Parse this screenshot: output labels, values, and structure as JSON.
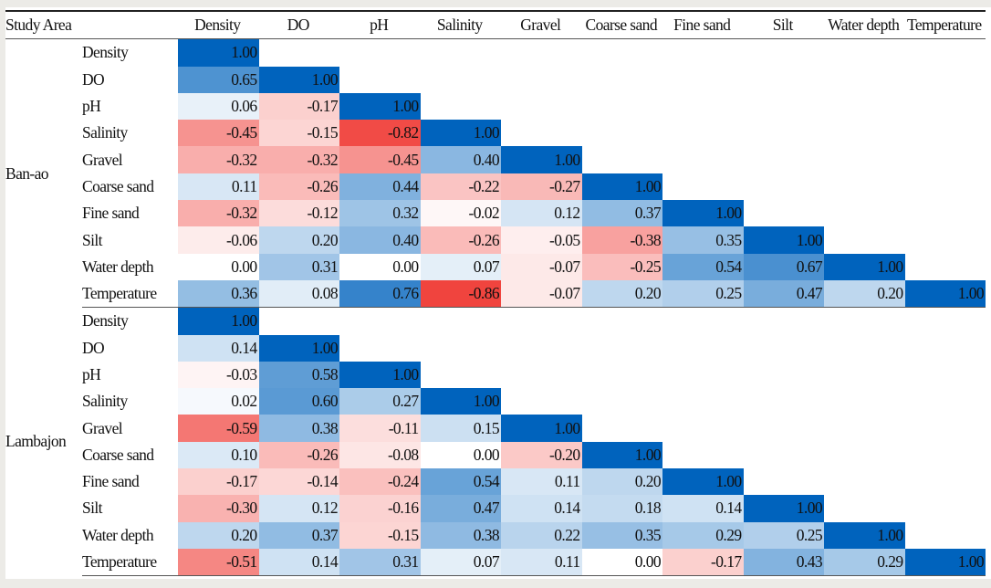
{
  "chart_data": {
    "type": "heatmap",
    "title": "",
    "header": {
      "study_area_label": "Study Area",
      "columns": [
        "Density",
        "DO",
        "pH",
        "Salinity",
        "Gravel",
        "Coarse sand",
        "Fine sand",
        "Silt",
        "Water depth",
        "Temperature"
      ]
    },
    "color_scale": {
      "negative": "#ee2a24",
      "zero": "#ffffff",
      "positive": "#0063bd",
      "range": [
        -1,
        1
      ]
    },
    "groups": [
      {
        "area": "Ban-ao",
        "rows": [
          {
            "label": "Density",
            "values": [
              "1.00"
            ]
          },
          {
            "label": "DO",
            "values": [
              "0.65",
              "1.00"
            ]
          },
          {
            "label": "pH",
            "values": [
              "0.06",
              "-0.17",
              "1.00"
            ]
          },
          {
            "label": "Salinity",
            "values": [
              "-0.45",
              "-0.15",
              "-0.82",
              "1.00"
            ]
          },
          {
            "label": "Gravel",
            "values": [
              "-0.32",
              "-0.32",
              "-0.45",
              "0.40",
              "1.00"
            ]
          },
          {
            "label": "Coarse sand",
            "values": [
              "0.11",
              "-0.26",
              "0.44",
              "-0.22",
              "-0.27",
              "1.00"
            ]
          },
          {
            "label": "Fine sand",
            "values": [
              "-0.32",
              "-0.12",
              "0.32",
              "-0.02",
              "0.12",
              "0.37",
              "1.00"
            ]
          },
          {
            "label": "Silt",
            "values": [
              "-0.06",
              "0.20",
              "0.40",
              "-0.26",
              "-0.05",
              "-0.38",
              "0.35",
              "1.00"
            ]
          },
          {
            "label": "Water depth",
            "values": [
              "0.00",
              "0.31",
              "0.00",
              "0.07",
              "-0.07",
              "-0.25",
              "0.54",
              "0.67",
              "1.00"
            ]
          },
          {
            "label": "Temperature",
            "values": [
              "0.36",
              "0.08",
              "0.76",
              "-0.86",
              "-0.07",
              "0.20",
              "0.25",
              "0.47",
              "0.20",
              "1.00"
            ]
          }
        ]
      },
      {
        "area": "Lambajon",
        "rows": [
          {
            "label": "Density",
            "values": [
              "1.00"
            ]
          },
          {
            "label": "DO",
            "values": [
              "0.14",
              "1.00"
            ]
          },
          {
            "label": "pH",
            "values": [
              "-0.03",
              "0.58",
              "1.00"
            ]
          },
          {
            "label": "Salinity",
            "values": [
              "0.02",
              "0.60",
              "0.27",
              "1.00"
            ]
          },
          {
            "label": "Gravel",
            "values": [
              "-0.59",
              "0.38",
              "-0.11",
              "0.15",
              "1.00"
            ]
          },
          {
            "label": "Coarse sand",
            "values": [
              "0.10",
              "-0.26",
              "-0.08",
              "0.00",
              "-0.20",
              "1.00"
            ]
          },
          {
            "label": "Fine sand",
            "values": [
              "-0.17",
              "-0.14",
              "-0.24",
              "0.54",
              "0.11",
              "0.20",
              "1.00"
            ]
          },
          {
            "label": "Silt",
            "values": [
              "-0.30",
              "0.12",
              "-0.16",
              "0.47",
              "0.14",
              "0.18",
              "0.14",
              "1.00"
            ]
          },
          {
            "label": "Water depth",
            "values": [
              "0.20",
              "0.37",
              "-0.15",
              "0.38",
              "0.22",
              "0.35",
              "0.29",
              "0.25",
              "1.00"
            ]
          },
          {
            "label": "Temperature",
            "values": [
              "-0.51",
              "0.14",
              "0.31",
              "0.07",
              "0.11",
              "0.00",
              "-0.17",
              "0.43",
              "0.29",
              "1.00"
            ]
          }
        ]
      }
    ]
  }
}
